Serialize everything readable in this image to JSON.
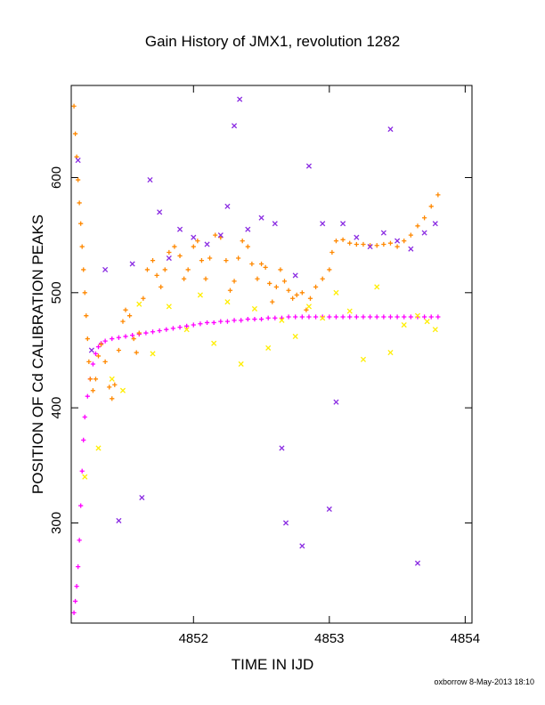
{
  "chart_data": {
    "type": "scatter",
    "title": "Gain History of JMX1, revolution 1282",
    "xlabel": "TIME IN IJD",
    "ylabel": "POSITION OF Cd CALIBRATION PEAKS",
    "xlim": [
      4851.1,
      4854.05
    ],
    "ylim": [
      213,
      680
    ],
    "x_ticks": [
      4852,
      4853,
      4854
    ],
    "x_tick_labels": [
      "4852",
      "4853",
      "4854"
    ],
    "y_ticks": [
      300,
      400,
      500,
      600
    ],
    "y_tick_labels": [
      "300",
      "400",
      "500",
      "600"
    ],
    "grid": false,
    "legend": "none",
    "footer": "oxborrow  8-May-2013 18:10",
    "series": [
      {
        "color": "#ff00ff",
        "marker": "plus",
        "points": [
          [
            4851.12,
            222
          ],
          [
            4851.13,
            232
          ],
          [
            4851.14,
            245
          ],
          [
            4851.15,
            262
          ],
          [
            4851.16,
            285
          ],
          [
            4851.17,
            315
          ],
          [
            4851.18,
            345
          ],
          [
            4851.19,
            372
          ],
          [
            4851.2,
            392
          ],
          [
            4851.22,
            410
          ],
          [
            4851.24,
            425
          ],
          [
            4851.26,
            438
          ],
          [
            4851.28,
            447
          ],
          [
            4851.3,
            453
          ],
          [
            4851.32,
            456
          ],
          [
            4851.35,
            458
          ],
          [
            4851.4,
            460
          ],
          [
            4851.45,
            461
          ],
          [
            4851.5,
            462
          ],
          [
            4851.55,
            463
          ],
          [
            4851.6,
            464
          ],
          [
            4851.65,
            465
          ],
          [
            4851.7,
            466
          ],
          [
            4851.75,
            467
          ],
          [
            4851.8,
            468
          ],
          [
            4851.85,
            469
          ],
          [
            4851.9,
            470
          ],
          [
            4851.95,
            471
          ],
          [
            4852.0,
            472
          ],
          [
            4852.05,
            473
          ],
          [
            4852.1,
            474
          ],
          [
            4852.15,
            474
          ],
          [
            4852.2,
            475
          ],
          [
            4852.25,
            475
          ],
          [
            4852.3,
            476
          ],
          [
            4852.35,
            476
          ],
          [
            4852.4,
            477
          ],
          [
            4852.45,
            477
          ],
          [
            4852.5,
            477
          ],
          [
            4852.55,
            478
          ],
          [
            4852.6,
            478
          ],
          [
            4852.65,
            478
          ],
          [
            4852.7,
            479
          ],
          [
            4852.75,
            479
          ],
          [
            4852.8,
            479
          ],
          [
            4852.85,
            479
          ],
          [
            4852.9,
            479
          ],
          [
            4852.95,
            479
          ],
          [
            4853.0,
            479
          ],
          [
            4853.05,
            479
          ],
          [
            4853.1,
            479
          ],
          [
            4853.15,
            479
          ],
          [
            4853.2,
            479
          ],
          [
            4853.25,
            479
          ],
          [
            4853.3,
            479
          ],
          [
            4853.35,
            479
          ],
          [
            4853.4,
            479
          ],
          [
            4853.45,
            479
          ],
          [
            4853.5,
            479
          ],
          [
            4853.55,
            479
          ],
          [
            4853.6,
            479
          ],
          [
            4853.65,
            479
          ],
          [
            4853.7,
            479
          ],
          [
            4853.75,
            479
          ],
          [
            4853.8,
            479
          ]
        ]
      },
      {
        "color": "#ff8800",
        "marker": "plus",
        "points": [
          [
            4851.12,
            662
          ],
          [
            4851.13,
            638
          ],
          [
            4851.14,
            618
          ],
          [
            4851.15,
            598
          ],
          [
            4851.16,
            578
          ],
          [
            4851.17,
            560
          ],
          [
            4851.18,
            540
          ],
          [
            4851.19,
            520
          ],
          [
            4851.2,
            500
          ],
          [
            4851.21,
            480
          ],
          [
            4851.22,
            460
          ],
          [
            4851.23,
            440
          ],
          [
            4851.24,
            425
          ],
          [
            4851.26,
            415
          ],
          [
            4851.28,
            425
          ],
          [
            4851.3,
            445
          ],
          [
            4851.32,
            455
          ],
          [
            4851.35,
            440
          ],
          [
            4851.38,
            418
          ],
          [
            4851.4,
            408
          ],
          [
            4851.42,
            420
          ],
          [
            4851.45,
            450
          ],
          [
            4851.48,
            475
          ],
          [
            4851.5,
            485
          ],
          [
            4851.53,
            480
          ],
          [
            4851.56,
            460
          ],
          [
            4851.58,
            448
          ],
          [
            4851.6,
            465
          ],
          [
            4851.63,
            495
          ],
          [
            4851.66,
            520
          ],
          [
            4851.7,
            528
          ],
          [
            4851.73,
            515
          ],
          [
            4851.76,
            505
          ],
          [
            4851.79,
            520
          ],
          [
            4851.82,
            535
          ],
          [
            4851.86,
            540
          ],
          [
            4851.9,
            532
          ],
          [
            4851.93,
            512
          ],
          [
            4851.96,
            520
          ],
          [
            4852.0,
            540
          ],
          [
            4852.03,
            545
          ],
          [
            4852.06,
            528
          ],
          [
            4852.09,
            512
          ],
          [
            4852.12,
            530
          ],
          [
            4852.16,
            550
          ],
          [
            4852.2,
            548
          ],
          [
            4852.24,
            528
          ],
          [
            4852.27,
            502
          ],
          [
            4852.3,
            510
          ],
          [
            4852.33,
            530
          ],
          [
            4852.36,
            545
          ],
          [
            4852.4,
            540
          ],
          [
            4852.43,
            525
          ],
          [
            4852.47,
            512
          ],
          [
            4852.5,
            525
          ],
          [
            4852.53,
            522
          ],
          [
            4852.56,
            508
          ],
          [
            4852.58,
            492
          ],
          [
            4852.61,
            505
          ],
          [
            4852.64,
            520
          ],
          [
            4852.67,
            510
          ],
          [
            4852.7,
            502
          ],
          [
            4852.73,
            495
          ],
          [
            4852.76,
            498
          ],
          [
            4852.8,
            500
          ],
          [
            4852.83,
            485
          ],
          [
            4852.86,
            495
          ],
          [
            4852.9,
            505
          ],
          [
            4852.95,
            512
          ],
          [
            4853.0,
            520
          ],
          [
            4853.02,
            535
          ],
          [
            4853.05,
            545
          ],
          [
            4853.1,
            546
          ],
          [
            4853.15,
            543
          ],
          [
            4853.2,
            542
          ],
          [
            4853.25,
            542
          ],
          [
            4853.3,
            541
          ],
          [
            4853.35,
            541
          ],
          [
            4853.4,
            542
          ],
          [
            4853.45,
            543
          ],
          [
            4853.5,
            540
          ],
          [
            4853.55,
            545
          ],
          [
            4853.6,
            550
          ],
          [
            4853.65,
            558
          ],
          [
            4853.7,
            565
          ],
          [
            4853.75,
            575
          ],
          [
            4853.8,
            585
          ]
        ]
      },
      {
        "color": "#ffee00",
        "marker": "cross",
        "points": [
          [
            4851.2,
            340
          ],
          [
            4851.3,
            365
          ],
          [
            4851.4,
            425
          ],
          [
            4851.48,
            415
          ],
          [
            4851.6,
            490
          ],
          [
            4851.7,
            447
          ],
          [
            4851.82,
            488
          ],
          [
            4851.95,
            468
          ],
          [
            4852.05,
            498
          ],
          [
            4852.15,
            456
          ],
          [
            4852.25,
            492
          ],
          [
            4852.35,
            438
          ],
          [
            4852.45,
            486
          ],
          [
            4852.55,
            452
          ],
          [
            4852.65,
            476
          ],
          [
            4852.75,
            462
          ],
          [
            4852.85,
            488
          ],
          [
            4852.95,
            478
          ],
          [
            4853.05,
            500
          ],
          [
            4853.15,
            484
          ],
          [
            4853.25,
            442
          ],
          [
            4853.35,
            505
          ],
          [
            4853.45,
            448
          ],
          [
            4853.55,
            472
          ],
          [
            4853.65,
            480
          ],
          [
            4853.72,
            475
          ],
          [
            4853.78,
            468
          ]
        ]
      },
      {
        "color": "#8a2be2",
        "marker": "cross",
        "points": [
          [
            4851.15,
            615
          ],
          [
            4851.25,
            450
          ],
          [
            4851.35,
            520
          ],
          [
            4851.45,
            302
          ],
          [
            4851.55,
            525
          ],
          [
            4851.62,
            322
          ],
          [
            4851.68,
            598
          ],
          [
            4851.75,
            570
          ],
          [
            4851.82,
            530
          ],
          [
            4851.9,
            555
          ],
          [
            4852.0,
            548
          ],
          [
            4852.1,
            542
          ],
          [
            4852.2,
            550
          ],
          [
            4852.25,
            575
          ],
          [
            4852.3,
            645
          ],
          [
            4852.34,
            668
          ],
          [
            4852.4,
            555
          ],
          [
            4852.5,
            565
          ],
          [
            4852.6,
            560
          ],
          [
            4852.65,
            365
          ],
          [
            4852.68,
            300
          ],
          [
            4852.75,
            515
          ],
          [
            4852.8,
            280
          ],
          [
            4852.85,
            610
          ],
          [
            4852.95,
            560
          ],
          [
            4853.0,
            312
          ],
          [
            4853.05,
            405
          ],
          [
            4853.1,
            560
          ],
          [
            4853.2,
            548
          ],
          [
            4853.3,
            540
          ],
          [
            4853.4,
            552
          ],
          [
            4853.45,
            642
          ],
          [
            4853.5,
            545
          ],
          [
            4853.6,
            538
          ],
          [
            4853.65,
            265
          ],
          [
            4853.7,
            552
          ],
          [
            4853.78,
            560
          ]
        ]
      }
    ]
  }
}
